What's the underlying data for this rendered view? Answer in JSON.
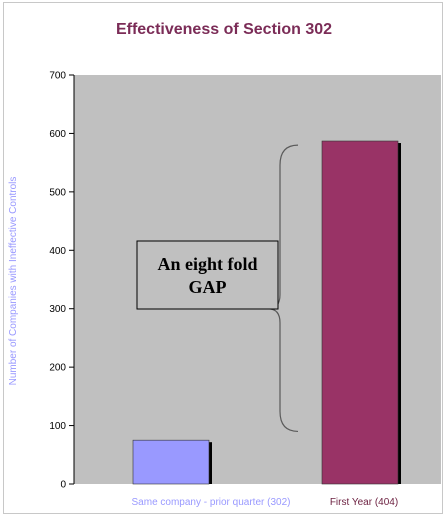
{
  "chart_data": {
    "type": "bar",
    "title": "Effectiveness of Section 302",
    "ylabel": "Number of Companies with Ineffective Controls",
    "xlabel": "",
    "categories": [
      "Same company - prior quarter (302)",
      "First Year (404)"
    ],
    "values": [
      75,
      587
    ],
    "ylim": [
      0,
      700
    ],
    "yticks": [
      0,
      100,
      200,
      300,
      400,
      500,
      600,
      700
    ],
    "grid": false,
    "legend": "none",
    "annotation": {
      "lines": [
        "An eight fold",
        "GAP"
      ],
      "spans": [
        90,
        580
      ]
    },
    "colors": {
      "title": "#7b2c57",
      "ylabel": "#9999ff",
      "plot_background": "#c0c0c0",
      "bars": [
        "#9999ff",
        "#993366"
      ],
      "bar_shadow": "#000000",
      "category_labels": [
        "#9999ff",
        "#6b1f3f"
      ],
      "bracket": "#5a5a5a",
      "annotation_box": "#c0c0c0"
    }
  }
}
